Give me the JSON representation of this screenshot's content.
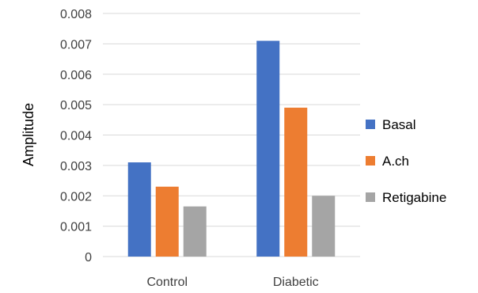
{
  "chart_data": {
    "type": "bar",
    "categories": [
      "Control",
      "Diabetic"
    ],
    "series": [
      {
        "name": "Basal",
        "color": "#4472C4",
        "values": [
          0.0031,
          0.0071
        ]
      },
      {
        "name": "A.ch",
        "color": "#ED7D31",
        "values": [
          0.0023,
          0.0049
        ]
      },
      {
        "name": "Retigabine",
        "color": "#A5A5A5",
        "values": [
          0.00165,
          0.002
        ]
      }
    ],
    "ylabel": "Amplitude",
    "ylim": [
      0,
      0.008
    ],
    "yticks": [
      "0",
      "0.001",
      "0.002",
      "0.003",
      "0.004",
      "0.005",
      "0.006",
      "0.007",
      "0.008"
    ],
    "grid": true,
    "legend_position": "right"
  }
}
